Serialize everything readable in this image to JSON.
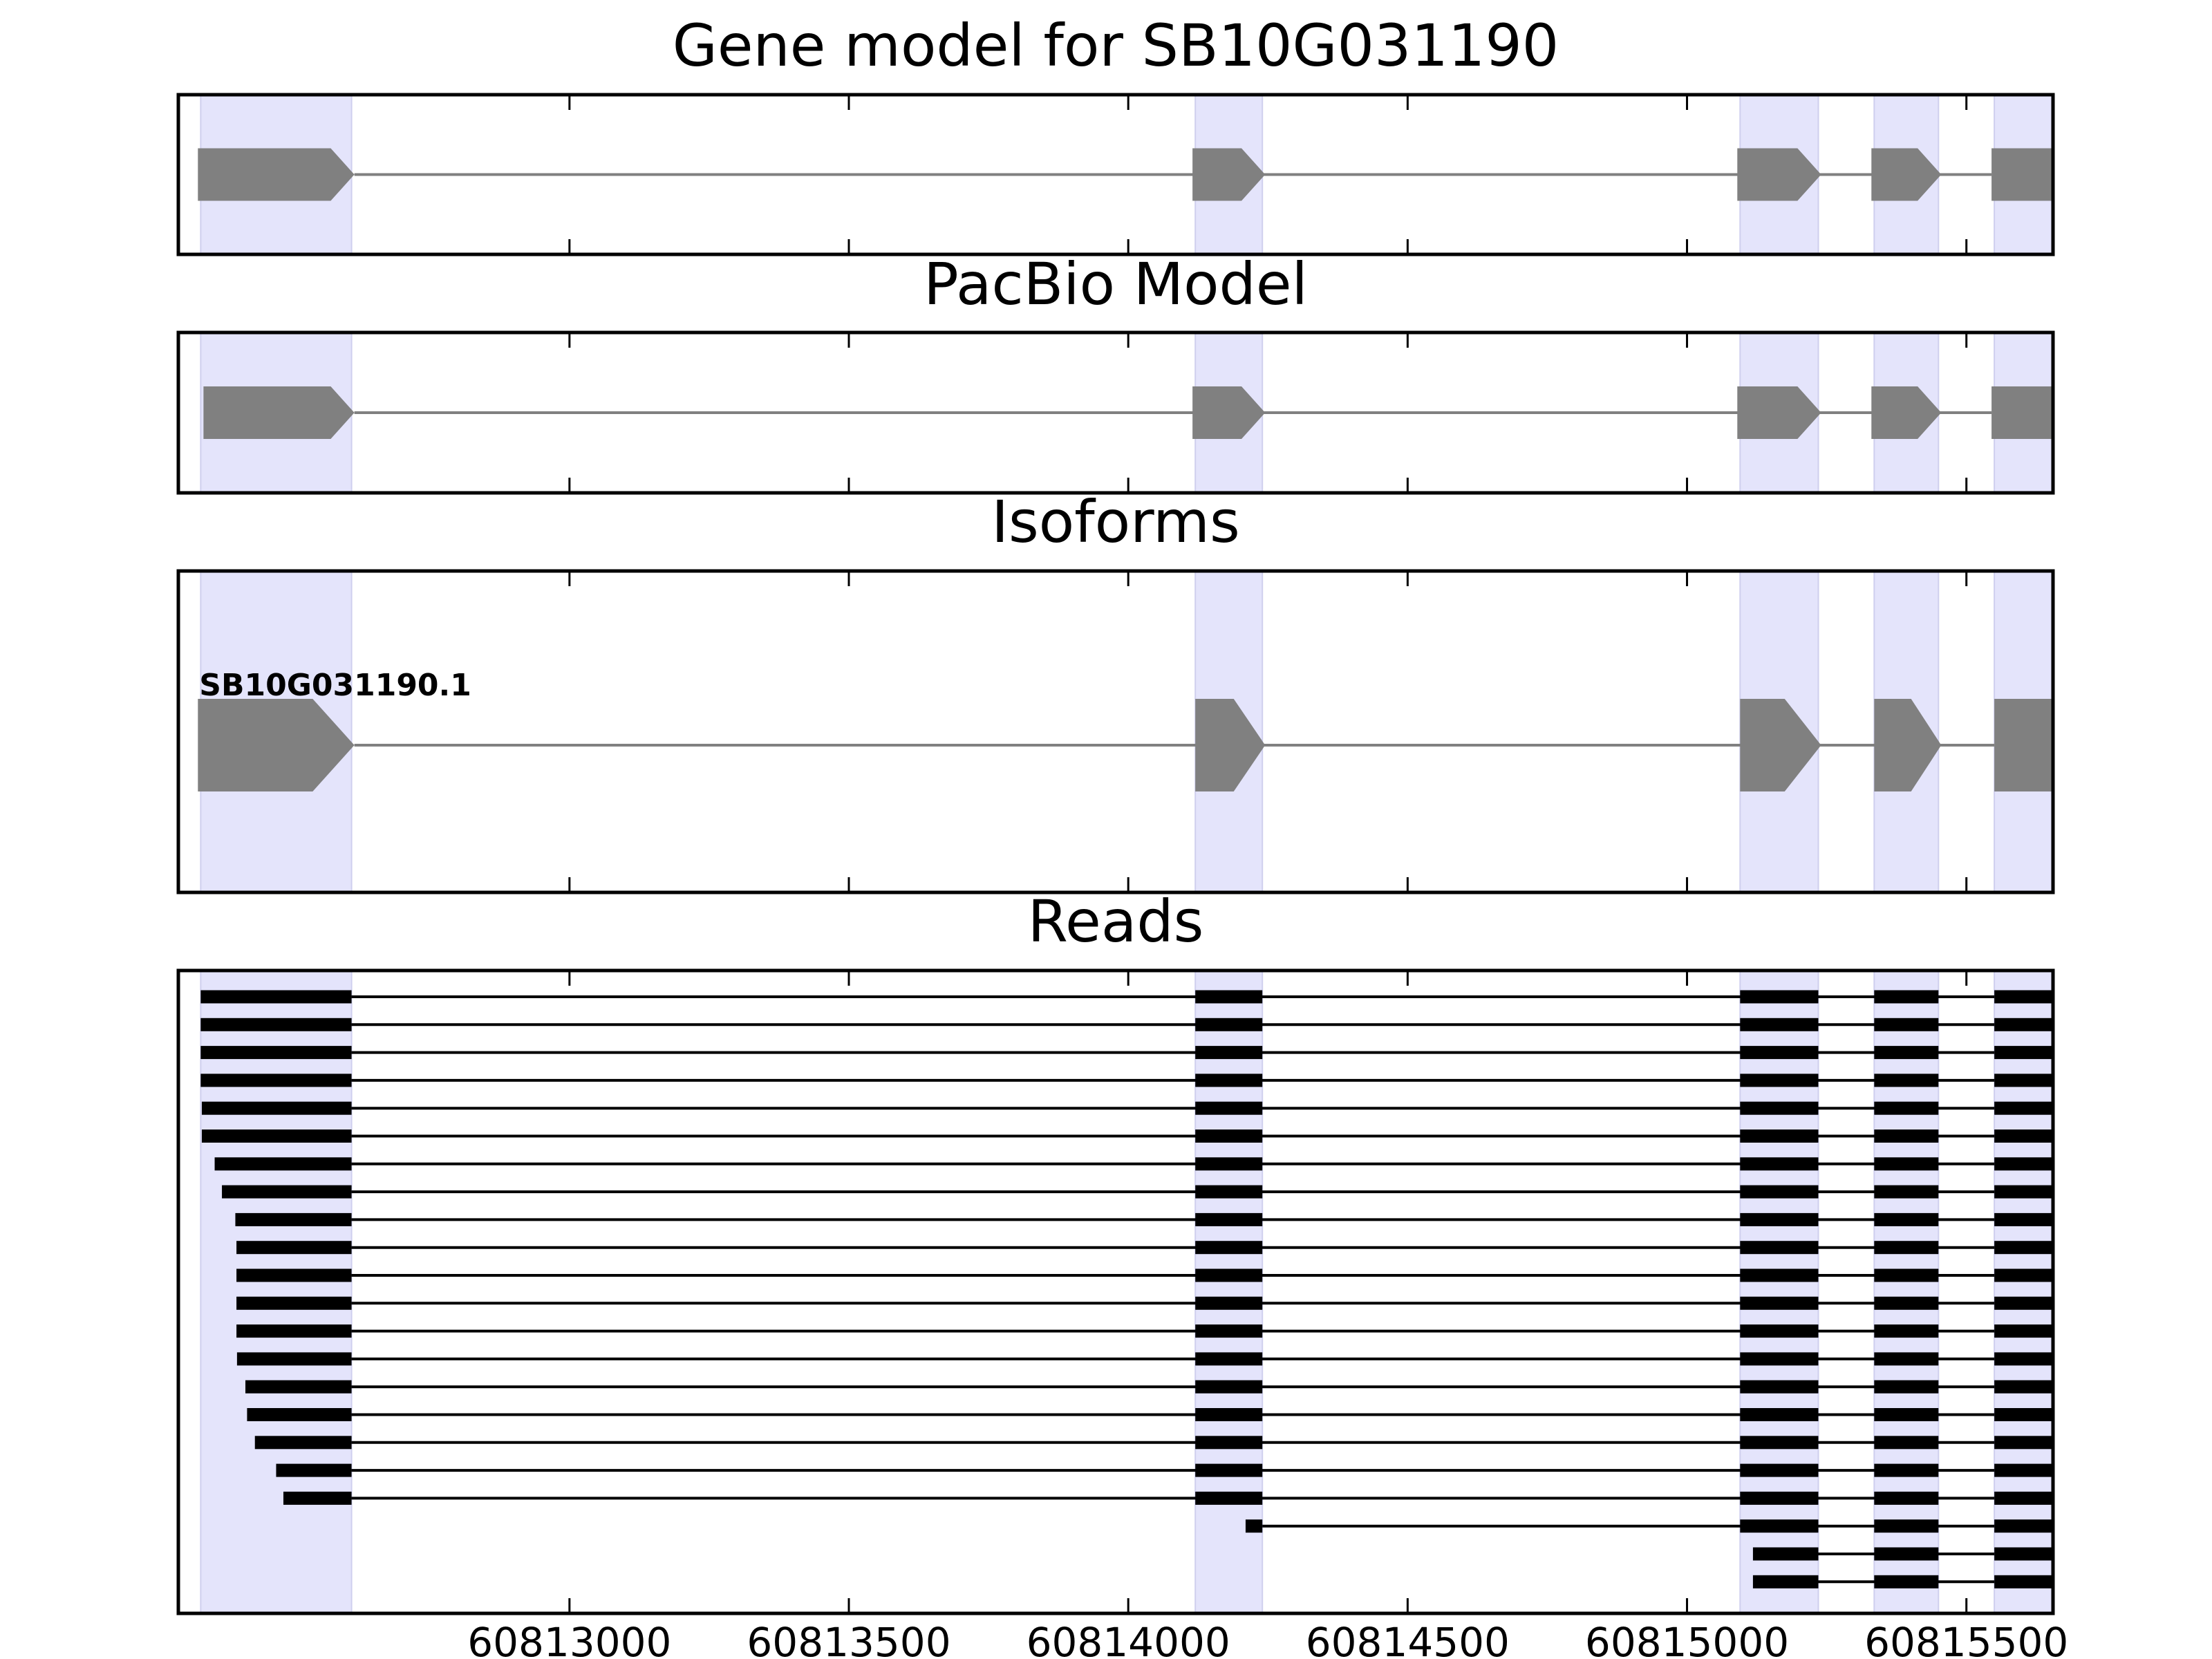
{
  "chart_data": {
    "type": "gene-structure",
    "xlim": [
      60812300,
      60815655
    ],
    "exons": [
      [
        60812340,
        60812610
      ],
      [
        60814120,
        60814240
      ],
      [
        60815095,
        60815235
      ],
      [
        60815335,
        60815450
      ],
      [
        60815550,
        60815815
      ]
    ],
    "ticks": [
      {
        "value": 60813000,
        "label": "60813000"
      },
      {
        "value": 60813500,
        "label": "60813500"
      },
      {
        "value": 60814000,
        "label": "60814000"
      },
      {
        "value": 60814500,
        "label": "60814500"
      },
      {
        "value": 60815000,
        "label": "60815000"
      },
      {
        "value": 60815500,
        "label": "60815500"
      }
    ],
    "colors": {
      "exon_shade": "#e4e4fb",
      "exon_shade_edge": "#cfcfee",
      "feature": "#808080",
      "read": "#000000",
      "frame": "#000000"
    },
    "panels": [
      {
        "title": "Gene model for SB10G031190",
        "blocks": [
          [
            60812335,
            60812615
          ],
          [
            60814115,
            60814245
          ],
          [
            60815090,
            60815240
          ],
          [
            60815330,
            60815455
          ],
          [
            60815545,
            60815825
          ]
        ]
      },
      {
        "title": "PacBio Model",
        "blocks": [
          [
            60812345,
            60812615
          ],
          [
            60814115,
            60814245
          ],
          [
            60815090,
            60815240
          ],
          [
            60815330,
            60815455
          ],
          [
            60815545,
            60815825
          ]
        ]
      },
      {
        "title": "Isoforms",
        "isoforms": [
          {
            "name": "SB10G031190.1",
            "blocks": [
              [
                60812335,
                60812615
              ],
              [
                60814120,
                60814245
              ],
              [
                60815095,
                60815240
              ],
              [
                60815335,
                60815455
              ],
              [
                60815550,
                60815820
              ]
            ]
          }
        ]
      },
      {
        "title": "Reads",
        "reads": [
          {
            "start": 60812340,
            "end": 60815815
          },
          {
            "start": 60812340,
            "end": 60815820
          },
          {
            "start": 60812340,
            "end": 60815820
          },
          {
            "start": 60812340,
            "end": 60815855
          },
          {
            "start": 60812342,
            "end": 60815855
          },
          {
            "start": 60812342,
            "end": 60815800
          },
          {
            "start": 60812365,
            "end": 60815835
          },
          {
            "start": 60812378,
            "end": 60815798
          },
          {
            "start": 60812402,
            "end": 60815745
          },
          {
            "start": 60812404,
            "end": 60815818
          },
          {
            "start": 60812404,
            "end": 60815818
          },
          {
            "start": 60812404,
            "end": 60815826
          },
          {
            "start": 60812404,
            "end": 60815800
          },
          {
            "start": 60812405,
            "end": 60815823
          },
          {
            "start": 60812420,
            "end": 60815802
          },
          {
            "start": 60812423,
            "end": 60815806
          },
          {
            "start": 60812437,
            "end": 60815855
          },
          {
            "start": 60812475,
            "end": 60815816
          },
          {
            "start": 60812488,
            "end": 60815819
          },
          {
            "start": 60814210,
            "end": 60815817
          },
          {
            "start": 60815118,
            "end": 60815793
          },
          {
            "start": 60815118,
            "end": 60815793
          }
        ]
      }
    ]
  }
}
